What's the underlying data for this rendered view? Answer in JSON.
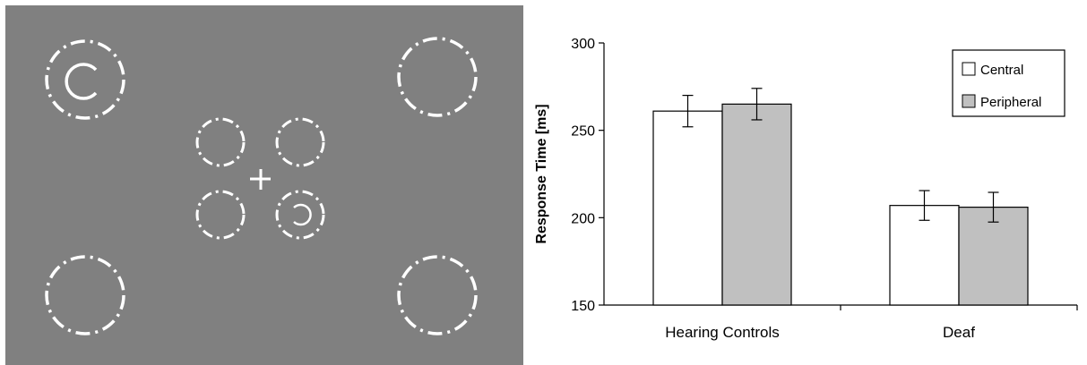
{
  "stimulus": {
    "background_color": "#808080",
    "stroke_color": "#ffffff"
  },
  "chart_data": {
    "type": "bar",
    "categories": [
      "Hearing Controls",
      "Deaf"
    ],
    "series": [
      {
        "name": "Central",
        "values": [
          261,
          207
        ],
        "errors": [
          9,
          8.5
        ],
        "color": "#ffffff"
      },
      {
        "name": "Peripheral",
        "values": [
          265,
          206
        ],
        "errors": [
          9,
          8.5
        ],
        "color": "#c0c0c0"
      }
    ],
    "ylabel": "Response Time [ms]",
    "xlabel": "",
    "ylim": [
      150,
      300
    ],
    "yticks": [
      150,
      200,
      250,
      300
    ],
    "grid": false,
    "legend_position": "top-right"
  }
}
